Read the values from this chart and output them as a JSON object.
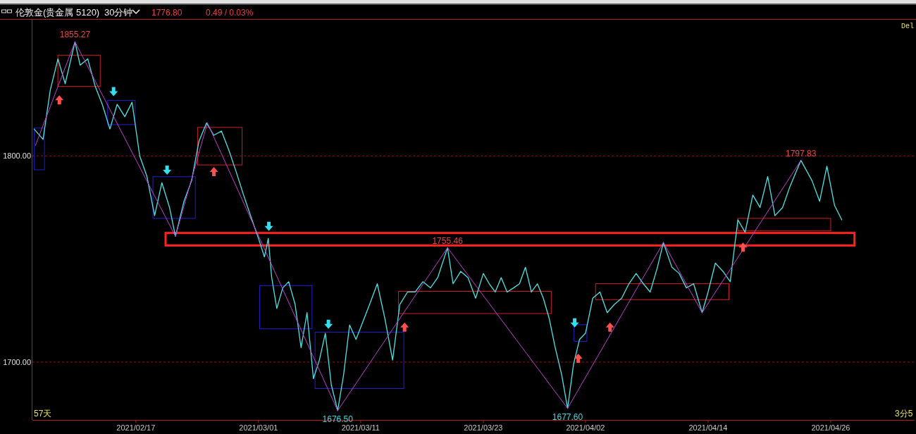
{
  "chart_data": {
    "type": "line",
    "title": "伦敦金(贵金属 5120)",
    "subtitle": "30分钟",
    "annotations": [
      "1776.80",
      "0.49 / 0.03%",
      "57天",
      "Del",
      "3分5",
      {
        "text": "1855.27",
        "x": "2021-02-11T01:00",
        "y": 1855.27
      },
      {
        "text": "1676.50",
        "x": "2021-03-08T18:00",
        "y": 1676.5
      },
      {
        "text": "1755.46",
        "x": "2021-03-19T12:00",
        "y": 1755.46
      },
      {
        "text": "1677.60",
        "x": "2021-03-31T06:00",
        "y": 1677.6
      },
      {
        "text": "1797.83",
        "x": "2021-04-23T02:00",
        "y": 1797.83
      }
    ],
    "xlim": [
      "2021-02-06T21:00",
      "2021-05-04T05:00"
    ],
    "ylim": [
      1672,
      1866
    ],
    "xticks": [
      {
        "value": "2021-02-17",
        "label": "2021/02/17"
      },
      {
        "value": "2021-03-01",
        "label": "2021/03/01"
      },
      {
        "value": "2021-03-11",
        "label": "2021/03/11"
      },
      {
        "value": "2021-03-23",
        "label": "2021/03/23"
      },
      {
        "value": "2021-04-02",
        "label": "2021/04/02"
      },
      {
        "value": "2021-04-14",
        "label": "2021/04/14"
      },
      {
        "value": "2021-04-26",
        "label": "2021/04/26"
      }
    ],
    "yticks": [
      {
        "value": 1700,
        "label": "1700.00"
      },
      {
        "value": 1800,
        "label": "1800.00"
      }
    ],
    "grid": "y",
    "series": [
      {
        "color": "#4fe3e3",
        "x": [
          "2021-02-07T01:00",
          "2021-02-07T22:00",
          "2021-02-08T15:00",
          "2021-02-09T09:00",
          "2021-02-10T02:00",
          "2021-02-11T01:00",
          "2021-02-11T13:00",
          "2021-02-12T07:00",
          "2021-02-13T00:00",
          "2021-02-13T17:00",
          "2021-02-14T11:00",
          "2021-02-15T04:00",
          "2021-02-15T22:00",
          "2021-02-16T15:00",
          "2021-02-17T09:00",
          "2021-02-18T02:00",
          "2021-02-18T20:00",
          "2021-02-19T13:00",
          "2021-02-20T07:00",
          "2021-02-20T21:00",
          "2021-02-21T17:00",
          "2021-02-22T11:00",
          "2021-02-23T04:00",
          "2021-02-23T22:00",
          "2021-02-24T15:00",
          "2021-02-25T09:00",
          "2021-02-26T02:00",
          "2021-02-26T20:00",
          "2021-02-27T13:00",
          "2021-02-28T07:00",
          "2021-03-01T00:00",
          "2021-03-01T14:00",
          "2021-03-01T23:00",
          "2021-03-02T07:00",
          "2021-03-02T19:00",
          "2021-03-03T09:00",
          "2021-03-03T23:00",
          "2021-03-04T14:00",
          "2021-03-05T04:00",
          "2021-03-05T18:00",
          "2021-03-06T09:00",
          "2021-03-06T23:00",
          "2021-03-07T13:00",
          "2021-03-08T03:00",
          "2021-03-08T18:00",
          "2021-03-09T08:00",
          "2021-03-09T22:00",
          "2021-03-10T13:00",
          "2021-03-11T04:00",
          "2021-03-11T21:00",
          "2021-03-12T15:00",
          "2021-03-13T09:00",
          "2021-03-14T03:00",
          "2021-03-14T20:00",
          "2021-03-15T14:00",
          "2021-03-16T08:00",
          "2021-03-17T02:00",
          "2021-03-17T20:00",
          "2021-03-18T13:00",
          "2021-03-19T12:00",
          "2021-03-20T01:00",
          "2021-03-20T19:00",
          "2021-03-21T12:00",
          "2021-03-22T06:00",
          "2021-03-23T00:00",
          "2021-03-23T14:00",
          "2021-03-24T04:00",
          "2021-03-24T18:00",
          "2021-03-25T08:00",
          "2021-03-25T23:00",
          "2021-03-26T13:00",
          "2021-03-27T03:00",
          "2021-03-27T17:00",
          "2021-03-28T07:00",
          "2021-03-28T21:00",
          "2021-03-29T11:00",
          "2021-03-30T01:00",
          "2021-03-30T16:00",
          "2021-03-31T06:00",
          "2021-03-31T20:00",
          "2021-04-01T10:00",
          "2021-04-02T00:00",
          "2021-04-02T17:00",
          "2021-04-03T10:00",
          "2021-04-04T03:00",
          "2021-04-04T20:00",
          "2021-04-05T13:00",
          "2021-04-06T06:00",
          "2021-04-06T23:00",
          "2021-04-07T16:00",
          "2021-04-08T08:00",
          "2021-04-09T01:00",
          "2021-04-09T15:00",
          "2021-04-10T11:00",
          "2021-04-11T04:00",
          "2021-04-11T21:00",
          "2021-04-12T14:00",
          "2021-04-13T10:00",
          "2021-04-14T00:00",
          "2021-04-14T17:00",
          "2021-04-15T11:00",
          "2021-04-16T04:00",
          "2021-04-16T22:00",
          "2021-04-17T15:00",
          "2021-04-18T09:00",
          "2021-04-19T02:00",
          "2021-04-19T20:00",
          "2021-04-20T13:00",
          "2021-04-21T07:00",
          "2021-04-22T00:00",
          "2021-04-23T02:00",
          "2021-04-24T04:00",
          "2021-04-24T22:00",
          "2021-04-25T15:00",
          "2021-04-26T09:00",
          "2021-04-27T02:00"
        ],
        "values": [
          1813,
          1808,
          1832,
          1847,
          1835,
          1855.27,
          1844,
          1847,
          1834,
          1825,
          1813,
          1825,
          1819,
          1826,
          1800,
          1790,
          1771,
          1787,
          1775,
          1761,
          1778,
          1788,
          1807,
          1816,
          1810,
          1812,
          1803,
          1792,
          1781,
          1770,
          1760,
          1751,
          1760,
          1741,
          1726,
          1736,
          1739,
          1728,
          1707,
          1724,
          1692,
          1701,
          1714,
          1689,
          1676.5,
          1694,
          1718,
          1711,
          1719,
          1728,
          1738,
          1721,
          1701,
          1728,
          1734,
          1734,
          1739,
          1736,
          1741,
          1755.46,
          1738,
          1744,
          1741,
          1731,
          1743,
          1738,
          1734,
          1741,
          1734,
          1736,
          1738,
          1746,
          1734,
          1738,
          1731,
          1721,
          1707,
          1694,
          1677.6,
          1699,
          1711,
          1714,
          1731,
          1734,
          1724,
          1728,
          1731,
          1738,
          1743,
          1738,
          1734,
          1746,
          1758,
          1746,
          1743,
          1736,
          1738,
          1724,
          1734,
          1748,
          1744,
          1739,
          1769,
          1763,
          1781,
          1775,
          1790,
          1771,
          1775,
          1785,
          1797.83,
          1788,
          1778,
          1795,
          1776,
          1769
        ]
      },
      {
        "color": "#c040d0",
        "x": [
          "2021-02-07T04:00",
          "2021-02-11T01:00",
          "2021-02-20T21:00",
          "2021-02-24T00:00",
          "2021-03-08T18:00",
          "2021-03-19T12:00",
          "2021-03-31T06:00",
          "2021-04-09T15:00",
          "2021-04-13T10:00",
          "2021-04-23T02:00"
        ],
        "values": [
          1805,
          1855.27,
          1761,
          1816,
          1676.5,
          1755.46,
          1677.6,
          1758,
          1724,
          1797.83
        ]
      }
    ]
  }
}
